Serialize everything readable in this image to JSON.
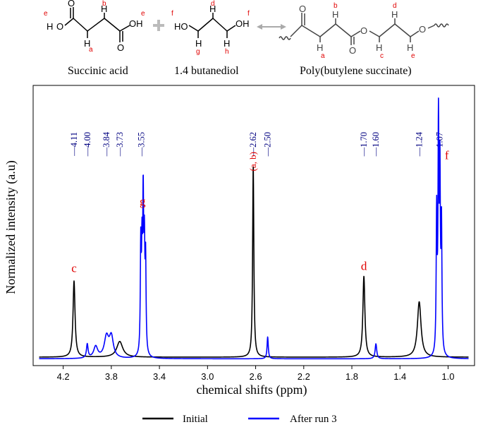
{
  "figure": {
    "scheme": {
      "compounds": [
        {
          "name": "Succinic acid"
        },
        {
          "name": "1.4 butanediol"
        },
        {
          "name": "Poly(butylene succinate)"
        }
      ],
      "atoms": {
        "o": "O",
        "h": "H",
        "ho": "HO",
        "oh": "OH"
      },
      "labels": {
        "a": "a",
        "b": "b",
        "c": "c",
        "d": "d",
        "e": "e",
        "f": "f",
        "g": "g",
        "h": "h"
      }
    }
  },
  "chart_data": {
    "type": "line",
    "title": "",
    "xlabel": "chemical shifts (ppm)",
    "ylabel": "Normalized intensity (a.u)",
    "xlim": [
      4.45,
      0.78
    ],
    "ylim": [
      0,
      1.0
    ],
    "x_reversed": true,
    "xticks": [
      "4.2",
      "3.8",
      "3.4",
      "3.0",
      "2.6",
      "2.2",
      "1.8",
      "1.4",
      "1.0"
    ],
    "grid": false,
    "legend": "bottom-center",
    "series": [
      {
        "name": "Initial",
        "color": "#000000",
        "baseline": 0.012,
        "peaks": [
          {
            "x": 4.11,
            "h": 0.33,
            "w": 0.01
          },
          {
            "x": 3.73,
            "h": 0.068,
            "w": 0.03
          },
          {
            "x": 2.62,
            "h": 0.83,
            "w": 0.006
          },
          {
            "x": 1.7,
            "h": 0.35,
            "w": 0.01
          },
          {
            "x": 1.24,
            "h": 0.24,
            "w": 0.018
          }
        ]
      },
      {
        "name": "After run 3",
        "color": "#0000ff",
        "baseline": 0.005,
        "peaks": [
          {
            "x": 4.0,
            "h": 0.06,
            "w": 0.008
          },
          {
            "x": 3.93,
            "h": 0.05,
            "w": 0.02
          },
          {
            "x": 3.84,
            "h": 0.09,
            "w": 0.022
          },
          {
            "x": 3.8,
            "h": 0.09,
            "w": 0.02
          },
          {
            "x": 3.555,
            "h": 0.46,
            "w": 0.0045
          },
          {
            "x": 3.545,
            "h": 0.4,
            "w": 0.0045
          },
          {
            "x": 3.535,
            "h": 0.63,
            "w": 0.0045
          },
          {
            "x": 3.525,
            "h": 0.42,
            "w": 0.0045
          },
          {
            "x": 3.515,
            "h": 0.39,
            "w": 0.0045
          },
          {
            "x": 2.5,
            "h": 0.095,
            "w": 0.006
          },
          {
            "x": 1.6,
            "h": 0.065,
            "w": 0.008
          },
          {
            "x": 1.095,
            "h": 0.6,
            "w": 0.0045
          },
          {
            "x": 1.08,
            "h": 0.97,
            "w": 0.0045
          },
          {
            "x": 1.068,
            "h": 0.75,
            "w": 0.0045
          },
          {
            "x": 1.055,
            "h": 0.55,
            "w": 0.0045
          }
        ]
      }
    ],
    "peak_labels": [
      {
        "text": "c",
        "x": 4.11,
        "y": 0.38
      },
      {
        "text": "g",
        "x": 3.54,
        "y": 0.67
      },
      {
        "text": "(a, b)",
        "x": 2.62,
        "y": 0.86,
        "rotate": true
      },
      {
        "text": "d",
        "x": 1.7,
        "y": 0.39
      },
      {
        "text": "f",
        "x": 1.01,
        "y": 0.87
      }
    ],
    "shift_labels": [
      {
        "text": "4.11",
        "x": 4.11
      },
      {
        "text": "4.00",
        "x": 4.0
      },
      {
        "text": "3.84",
        "x": 3.84
      },
      {
        "text": "3.73",
        "x": 3.73
      },
      {
        "text": "3.55",
        "x": 3.55
      },
      {
        "text": "2.62",
        "x": 2.62
      },
      {
        "text": "2.50",
        "x": 2.5
      },
      {
        "text": "1.70",
        "x": 1.7
      },
      {
        "text": "1.60",
        "x": 1.6
      },
      {
        "text": "1.24",
        "x": 1.24
      },
      {
        "text": "1.07",
        "x": 1.07
      }
    ],
    "colors": {
      "label": "#e00000",
      "shift": "#000080"
    }
  }
}
